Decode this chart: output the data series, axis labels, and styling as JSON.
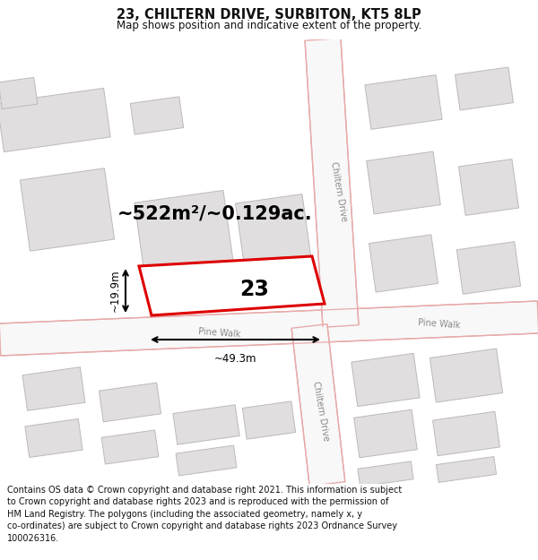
{
  "title": "23, CHILTERN DRIVE, SURBITON, KT5 8LP",
  "subtitle": "Map shows position and indicative extent of the property.",
  "area_label": "~522m²/~0.129ac.",
  "number_label": "23",
  "dim_width": "~49.3m",
  "dim_height": "~19.9m",
  "road_label_pine_walk_1": "Pine Walk",
  "road_label_pine_walk_2": "Pine Walk",
  "road_label_chiltern_1": "Chiltern Drive",
  "road_label_chiltern_2": "Chiltern Drive",
  "footer": "Contains OS data © Crown copyright and database right 2021. This information is subject to Crown copyright and database rights 2023 and is reproduced with the permission of HM Land Registry. The polygons (including the associated geometry, namely x, y co-ordinates) are subject to Crown copyright and database rights 2023 Ordnance Survey 100026316.",
  "map_bg": "#ffffff",
  "road_line_color": "#e8aaaa",
  "road_fill_color": "#f5f5f5",
  "building_fill": "#e0dede",
  "building_edge": "#c0b8b8",
  "red_outline": "#dd0000",
  "property_fill": "#ffffff",
  "text_color": "#111111",
  "road_text_color": "#888888",
  "dim_color": "#222222",
  "title_fontsize": 10.5,
  "subtitle_fontsize": 8.5,
  "footer_fontsize": 7.0,
  "area_fontsize": 15,
  "number_fontsize": 17,
  "dim_fontsize": 8.5,
  "road_fontsize": 7
}
